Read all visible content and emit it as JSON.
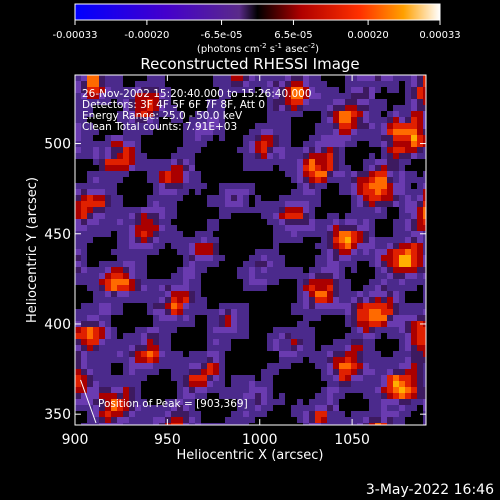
{
  "colorbar": {
    "tick_labels": [
      "-0.00033",
      "-0.00020",
      "-6.5e-05",
      "6.5e-05",
      "0.00020",
      "0.00033"
    ],
    "units_label_parts": [
      "(photons cm",
      "-2",
      " s",
      "-1",
      " asec",
      "-2",
      ")"
    ],
    "vmin": -0.00033,
    "vmax": 0.00033
  },
  "chart_data": {
    "type": "heatmap",
    "title": "Reconstructed RHESSI Image",
    "xlabel": "Heliocentric X (arcsec)",
    "ylabel": "Heliocentric Y (arcsec)",
    "xlim": [
      900,
      1090
    ],
    "ylim": [
      344,
      538
    ],
    "x_ticks": [
      "900",
      "950",
      "1000",
      "1050"
    ],
    "y_ticks": [
      "350",
      "400",
      "450",
      "500"
    ],
    "annotations": {
      "time_range": "26-Nov-2002 15:20:40.000 to 15:26:40.000",
      "detectors": "Detectors: 3F 4F 5F 6F 7F 8F, Att 0",
      "energy_range": "Energy Range: 25.0 - 50.0 keV",
      "clean_counts": "Clean     Total counts: 7.91E+03",
      "peak": "Position of Peak = [903,369]"
    },
    "peak_position": [
      903,
      369
    ],
    "colormap": "blue-purple-red-yellow-white"
  },
  "footer": {
    "date": "3-May-2022 16:46"
  }
}
